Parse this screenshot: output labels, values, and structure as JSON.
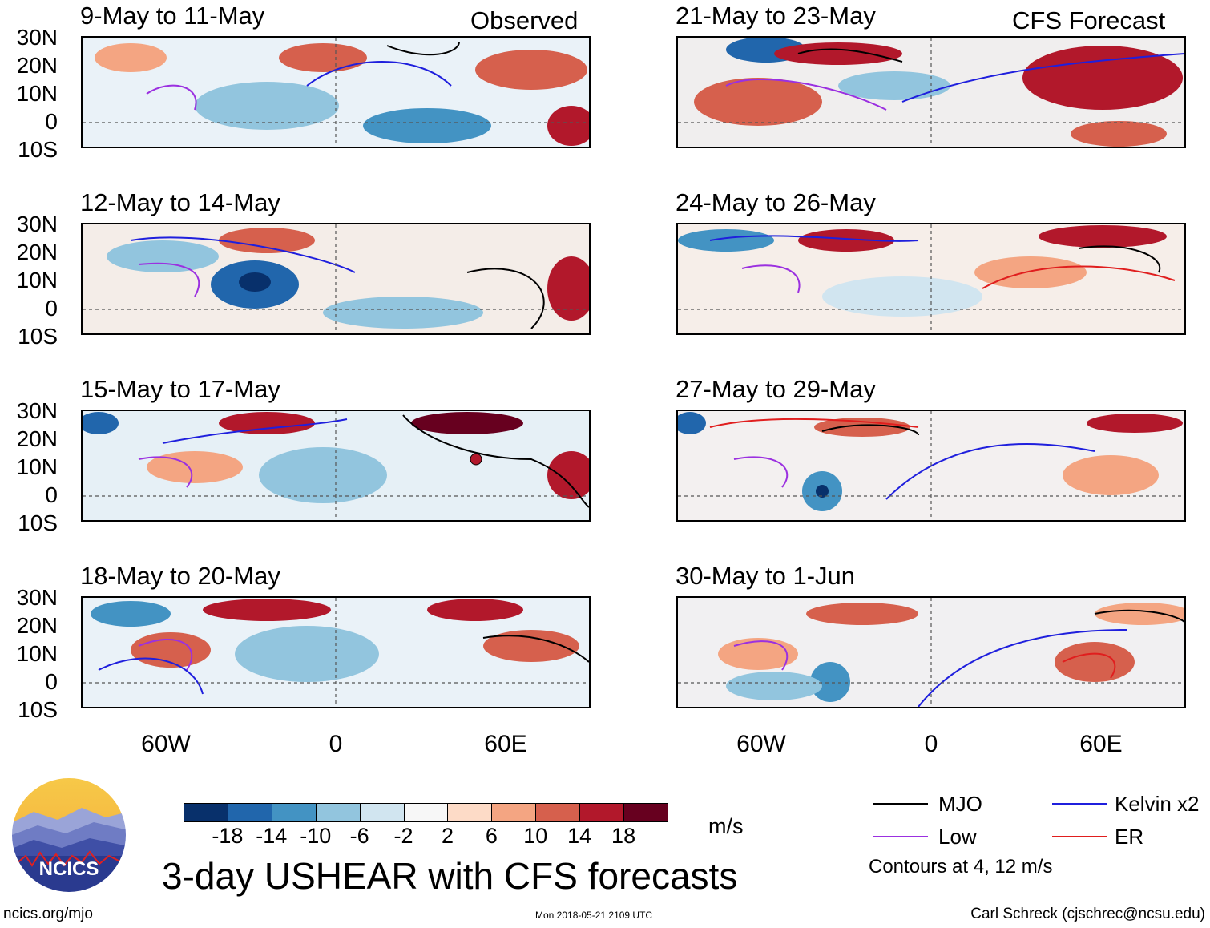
{
  "headers": {
    "observed": "Observed",
    "forecast": "CFS Forecast"
  },
  "panels": [
    {
      "title": "9-May to 11-May",
      "column": "observed"
    },
    {
      "title": "12-May to 14-May",
      "column": "observed"
    },
    {
      "title": "15-May to 17-May",
      "column": "observed"
    },
    {
      "title": "18-May to 20-May",
      "column": "observed"
    },
    {
      "title": "21-May to 23-May",
      "column": "forecast"
    },
    {
      "title": "24-May to 26-May",
      "column": "forecast"
    },
    {
      "title": "27-May to 29-May",
      "column": "forecast"
    },
    {
      "title": "30-May to 1-Jun",
      "column": "forecast"
    }
  ],
  "y_axis_labels": [
    "30N",
    "20N",
    "10N",
    "0",
    "10S"
  ],
  "x_axis_labels": [
    "60W",
    "0",
    "60E"
  ],
  "colorbar": {
    "colors": [
      "#08306b",
      "#2166ac",
      "#4393c3",
      "#92c5de",
      "#d1e5f0",
      "#f7f7f7",
      "#fddbc7",
      "#f4a582",
      "#d6604d",
      "#b2182b",
      "#67001f"
    ],
    "labels": [
      "-18",
      "-14",
      "-10",
      "-6",
      "-2",
      "2",
      "6",
      "10",
      "14",
      "18"
    ],
    "units": "m/s"
  },
  "legend": {
    "items": [
      {
        "label": "MJO",
        "color": "#000000"
      },
      {
        "label": "Kelvin x2",
        "color": "#1f1fdd"
      },
      {
        "label": "Low",
        "color": "#9b30e0"
      },
      {
        "label": "ER",
        "color": "#e01e1e"
      }
    ],
    "note": "Contours at 4, 12 m/s"
  },
  "main_title": "3-day USHEAR with CFS forecasts",
  "logo_text": "NCICS",
  "footer": {
    "url": "ncics.org/mjo",
    "timestamp": "Mon 2018-05-21 2109 UTC",
    "credit": "Carl Schreck (cjschrec@ncsu.edu)"
  }
}
